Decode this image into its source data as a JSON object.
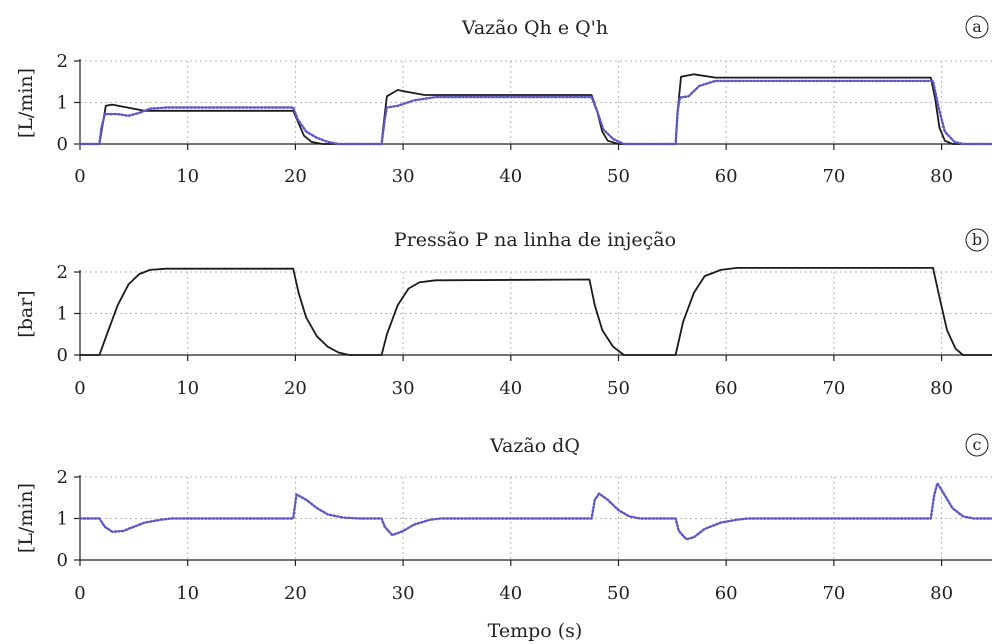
{
  "figure": {
    "xlabel": "Tempo (s)",
    "x_ticks": [
      0,
      10,
      20,
      30,
      40,
      50,
      60,
      70,
      80
    ],
    "colors": {
      "black": "#1a1a1a",
      "blue": "#5b57c4",
      "grid": "#b8b8b8",
      "text": "#231f20"
    }
  },
  "chart_data": [
    {
      "type": "line",
      "title": "Vazão Qh e Q'h",
      "panel_label": "a",
      "ylabel": "[L/min]",
      "xlim": [
        0,
        85
      ],
      "ylim": [
        0,
        2
      ],
      "y_ticks": [
        0,
        1,
        2
      ],
      "grid": true,
      "series": [
        {
          "color": "#1a1a1a",
          "style": "solid",
          "points": [
            [
              0,
              0
            ],
            [
              1.8,
              0
            ],
            [
              2.0,
              0.3
            ],
            [
              2.4,
              0.92
            ],
            [
              3.0,
              0.95
            ],
            [
              4.0,
              0.9
            ],
            [
              5.0,
              0.85
            ],
            [
              6.0,
              0.8
            ],
            [
              19.8,
              0.8
            ],
            [
              20.3,
              0.5
            ],
            [
              20.8,
              0.2
            ],
            [
              21.5,
              0.05
            ],
            [
              22.5,
              0
            ],
            [
              28.0,
              0
            ],
            [
              28.2,
              0.5
            ],
            [
              28.5,
              1.15
            ],
            [
              29.5,
              1.3
            ],
            [
              30.5,
              1.25
            ],
            [
              32.0,
              1.18
            ],
            [
              47.5,
              1.18
            ],
            [
              48.0,
              0.8
            ],
            [
              48.5,
              0.3
            ],
            [
              49.0,
              0.08
            ],
            [
              50.0,
              0
            ],
            [
              55.3,
              0
            ],
            [
              55.5,
              0.8
            ],
            [
              55.8,
              1.62
            ],
            [
              57.0,
              1.68
            ],
            [
              59.0,
              1.6
            ],
            [
              79.0,
              1.6
            ],
            [
              79.4,
              1.1
            ],
            [
              79.8,
              0.4
            ],
            [
              80.3,
              0.08
            ],
            [
              81.0,
              0
            ],
            [
              85,
              0
            ]
          ]
        },
        {
          "color": "#5b57c4",
          "style": "dotted",
          "points": [
            [
              0,
              0
            ],
            [
              1.8,
              0
            ],
            [
              2.0,
              0.4
            ],
            [
              2.3,
              0.72
            ],
            [
              3.5,
              0.72
            ],
            [
              4.5,
              0.68
            ],
            [
              5.5,
              0.75
            ],
            [
              6.5,
              0.85
            ],
            [
              8.0,
              0.88
            ],
            [
              19.8,
              0.88
            ],
            [
              20.2,
              0.6
            ],
            [
              21.0,
              0.3
            ],
            [
              22.0,
              0.15
            ],
            [
              23.0,
              0.05
            ],
            [
              24.0,
              0
            ],
            [
              28.0,
              0
            ],
            [
              28.3,
              0.6
            ],
            [
              28.5,
              0.88
            ],
            [
              29.5,
              0.92
            ],
            [
              31.0,
              1.05
            ],
            [
              33.0,
              1.13
            ],
            [
              47.5,
              1.13
            ],
            [
              48.0,
              0.8
            ],
            [
              48.6,
              0.35
            ],
            [
              49.5,
              0.12
            ],
            [
              50.5,
              0
            ],
            [
              55.3,
              0
            ],
            [
              55.5,
              0.8
            ],
            [
              55.7,
              1.12
            ],
            [
              56.5,
              1.15
            ],
            [
              57.5,
              1.4
            ],
            [
              59.0,
              1.52
            ],
            [
              79.2,
              1.52
            ],
            [
              79.7,
              0.9
            ],
            [
              80.3,
              0.3
            ],
            [
              81.2,
              0.05
            ],
            [
              82.0,
              0
            ],
            [
              85,
              0
            ]
          ]
        }
      ]
    },
    {
      "type": "line",
      "title": "Pressão P na linha de injeção",
      "panel_label": "b",
      "ylabel": "[bar]",
      "xlim": [
        0,
        85
      ],
      "ylim": [
        0,
        2
      ],
      "y_ticks": [
        0,
        1,
        2
      ],
      "grid": true,
      "series": [
        {
          "color": "#1a1a1a",
          "style": "solid",
          "points": [
            [
              0,
              0
            ],
            [
              1.8,
              0
            ],
            [
              2.5,
              0.5
            ],
            [
              3.5,
              1.2
            ],
            [
              4.5,
              1.7
            ],
            [
              5.5,
              1.95
            ],
            [
              6.5,
              2.05
            ],
            [
              8.0,
              2.08
            ],
            [
              19.8,
              2.08
            ],
            [
              20.3,
              1.5
            ],
            [
              21.0,
              0.9
            ],
            [
              22.0,
              0.45
            ],
            [
              23.0,
              0.2
            ],
            [
              24.0,
              0.06
            ],
            [
              25.0,
              0
            ],
            [
              28.0,
              0
            ],
            [
              28.5,
              0.5
            ],
            [
              29.5,
              1.2
            ],
            [
              30.5,
              1.6
            ],
            [
              31.5,
              1.75
            ],
            [
              33.0,
              1.8
            ],
            [
              47.3,
              1.82
            ],
            [
              47.8,
              1.2
            ],
            [
              48.5,
              0.6
            ],
            [
              49.5,
              0.2
            ],
            [
              50.5,
              0
            ],
            [
              55.3,
              0
            ],
            [
              56.0,
              0.8
            ],
            [
              57.0,
              1.5
            ],
            [
              58.0,
              1.9
            ],
            [
              59.5,
              2.05
            ],
            [
              61.0,
              2.1
            ],
            [
              79.2,
              2.1
            ],
            [
              79.8,
              1.4
            ],
            [
              80.5,
              0.6
            ],
            [
              81.3,
              0.15
            ],
            [
              82.0,
              0
            ],
            [
              85,
              0
            ]
          ]
        }
      ]
    },
    {
      "type": "line",
      "title": "Vazão dQ",
      "panel_label": "c",
      "ylabel": "[L/min]",
      "xlim": [
        0,
        85
      ],
      "ylim": [
        0,
        2
      ],
      "y_ticks": [
        0,
        1,
        2
      ],
      "grid": true,
      "series": [
        {
          "color": "#5b57c4",
          "style": "dotted",
          "points": [
            [
              0,
              1
            ],
            [
              1.8,
              1
            ],
            [
              2.3,
              0.8
            ],
            [
              3.0,
              0.68
            ],
            [
              4.0,
              0.7
            ],
            [
              5.0,
              0.8
            ],
            [
              6.0,
              0.9
            ],
            [
              7.5,
              0.97
            ],
            [
              8.5,
              1
            ],
            [
              19.8,
              1
            ],
            [
              20.1,
              1.58
            ],
            [
              21.0,
              1.45
            ],
            [
              22.0,
              1.25
            ],
            [
              23.0,
              1.1
            ],
            [
              24.5,
              1.02
            ],
            [
              26.0,
              1
            ],
            [
              28.0,
              1
            ],
            [
              28.3,
              0.8
            ],
            [
              29.0,
              0.6
            ],
            [
              30.0,
              0.7
            ],
            [
              31.0,
              0.85
            ],
            [
              32.5,
              0.97
            ],
            [
              33.5,
              1
            ],
            [
              47.5,
              1
            ],
            [
              47.8,
              1.45
            ],
            [
              48.2,
              1.6
            ],
            [
              49.0,
              1.45
            ],
            [
              50.0,
              1.2
            ],
            [
              51.0,
              1.05
            ],
            [
              52.0,
              1
            ],
            [
              55.3,
              1
            ],
            [
              55.6,
              0.7
            ],
            [
              56.3,
              0.5
            ],
            [
              57.0,
              0.55
            ],
            [
              58.0,
              0.75
            ],
            [
              59.5,
              0.9
            ],
            [
              61.0,
              0.97
            ],
            [
              62.0,
              1
            ],
            [
              79.0,
              1
            ],
            [
              79.3,
              1.55
            ],
            [
              79.6,
              1.85
            ],
            [
              80.2,
              1.6
            ],
            [
              81.0,
              1.25
            ],
            [
              82.0,
              1.05
            ],
            [
              83.0,
              1
            ],
            [
              85,
              1
            ]
          ]
        }
      ]
    }
  ]
}
